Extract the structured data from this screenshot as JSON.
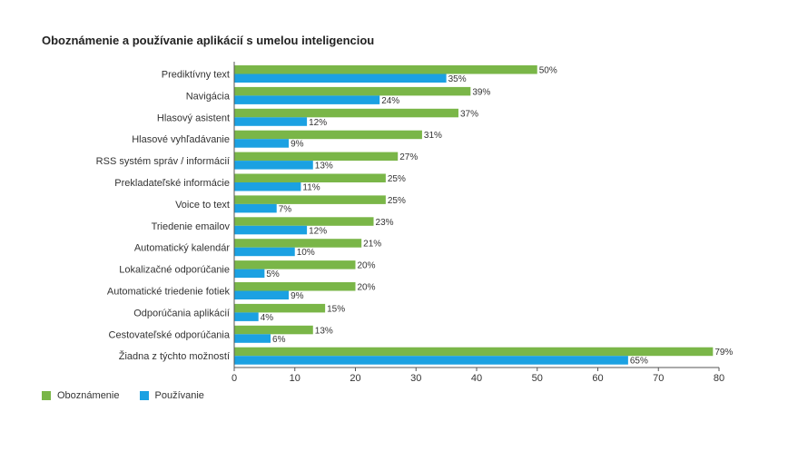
{
  "chart_data": {
    "type": "bar",
    "orientation": "horizontal",
    "title": "Oboznámenie a používanie aplikácií s umelou inteligenciou",
    "categories": [
      "Prediktívny text",
      "Navigácia",
      "Hlasový asistent",
      "Hlasové vyhľadávanie",
      "RSS systém správ / informácií",
      "Prekladateľské informácie",
      "Voice to text",
      "Triedenie emailov",
      "Automatický kalendár",
      "Lokalizačné odporúčanie",
      "Automatické triedenie fotiek",
      "Odporúčania aplikácií",
      "Cestovateľské odporúčania",
      "Žiadna z týchto možností"
    ],
    "series": [
      {
        "name": "Oboznámenie",
        "color": "#7ab648",
        "values": [
          50,
          39,
          37,
          31,
          27,
          25,
          25,
          23,
          21,
          20,
          20,
          15,
          13,
          79
        ]
      },
      {
        "name": "Používanie",
        "color": "#1ba1e2",
        "values": [
          35,
          24,
          12,
          9,
          13,
          11,
          7,
          12,
          10,
          5,
          9,
          4,
          6,
          65
        ]
      }
    ],
    "value_suffix": "%",
    "xlim": [
      0,
      80
    ],
    "xticks": [
      0,
      10,
      20,
      30,
      40,
      50,
      60,
      70,
      80
    ],
    "xlabel": "",
    "ylabel": "",
    "grid": false,
    "legend_position": "bottom-left",
    "data_labels": true
  }
}
